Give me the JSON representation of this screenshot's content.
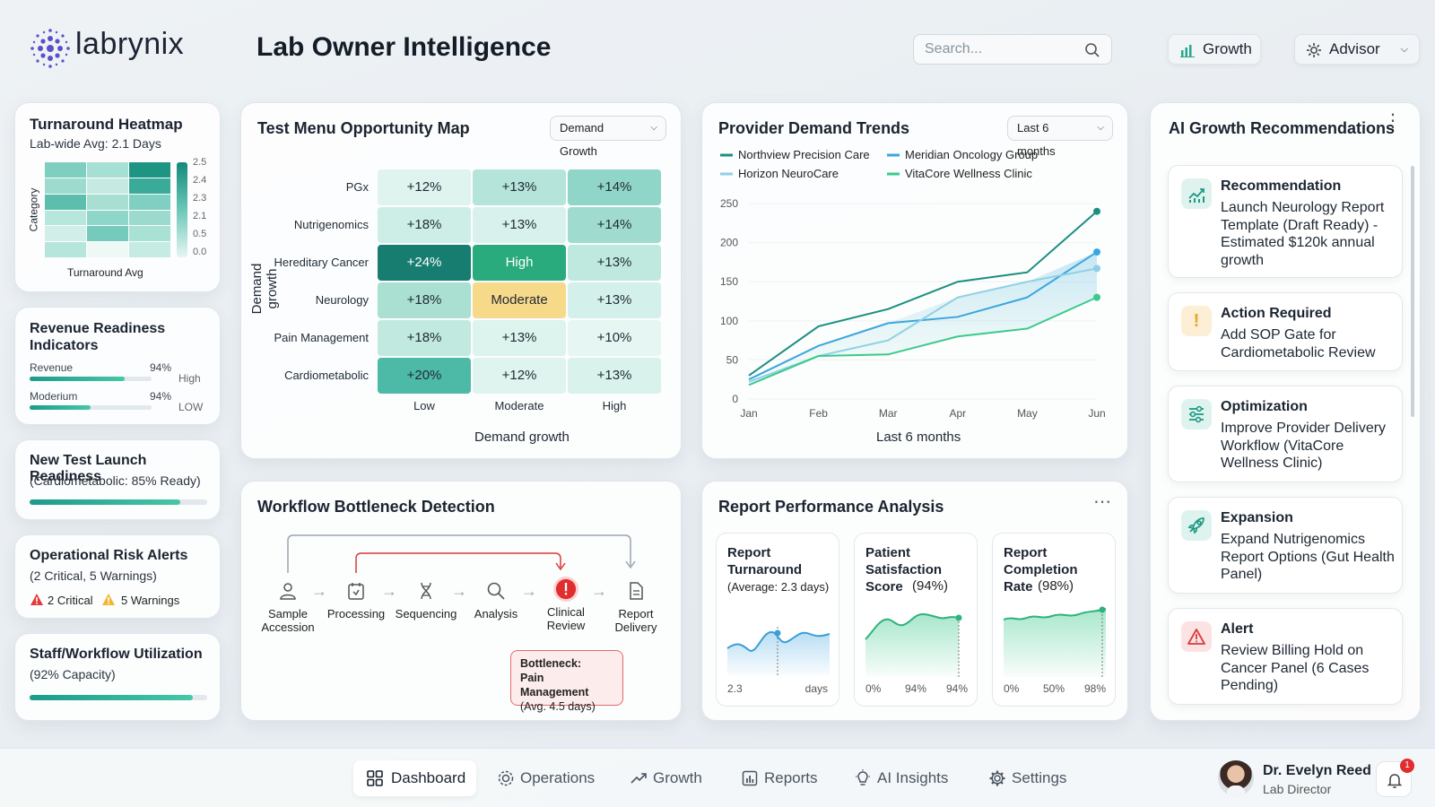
{
  "header": {
    "logo_text": "labrynix",
    "title": "Lab Owner Intelligence",
    "search_placeholder": "Search...",
    "growth_label": "Growth",
    "advisor_label": "Advisor"
  },
  "left": {
    "heatmap": {
      "title": "Turnaround Heatmap",
      "subtitle": "Lab-wide Avg: 2.1 Days",
      "ylabel": "Category",
      "xlabel": "Turnaround Avg",
      "scale": [
        "2.5",
        "2.4",
        "2.3",
        "2.1",
        "0.5",
        "0.0"
      ]
    },
    "revenue": {
      "title": "Revenue Readiness Indicators",
      "rows": [
        {
          "label": "Revenue",
          "value": "94%",
          "level": "High",
          "fill": 0.78
        },
        {
          "label": "Moderium",
          "value": "94%",
          "level": "LOW",
          "fill": 0.5
        }
      ]
    },
    "launch": {
      "title": "New Test Launch Readiness",
      "subtitle": "(Cardiometabolic: 85% Ready)",
      "fill": 0.85
    },
    "risk": {
      "title": "Operational Risk Alerts",
      "subtitle": "(2 Critical, 5 Warnings)",
      "critical": "2 Critical",
      "warnings": "5 Warnings"
    },
    "staff": {
      "title": "Staff/Workflow Utilization",
      "subtitle": "(92% Capacity)",
      "fill": 0.92
    }
  },
  "opportunity": {
    "title": "Test Menu Opportunity Map",
    "dropdown": "Demand Growth",
    "ylabel": "Demand growth",
    "xlabel": "Demand growth",
    "columns": [
      "Low",
      "Moderate",
      "High"
    ],
    "rows": [
      {
        "label": "PGx",
        "cells": [
          "+12%",
          "+13%",
          "+14%"
        ],
        "colors": [
          "#dff3ef",
          "#b4e4da",
          "#8fd5c8"
        ]
      },
      {
        "label": "Nutrigenomics",
        "cells": [
          "+18%",
          "+13%",
          "+14%"
        ],
        "colors": [
          "#cdeee6",
          "#d8f1ec",
          "#9fdccf"
        ]
      },
      {
        "label": "Hereditary Cancer",
        "cells": [
          "+24%",
          "High",
          "+13%"
        ],
        "colors": [
          "#177d70",
          "#2aab7e",
          "#bfe9df"
        ]
      },
      {
        "label": "Neurology",
        "cells": [
          "+18%",
          "Moderate",
          "+13%"
        ],
        "colors": [
          "#a9e0d2",
          "#f7d98a",
          "#d4f0ea"
        ]
      },
      {
        "label": "Pain Management",
        "cells": [
          "+18%",
          "+13%",
          "+10%"
        ],
        "colors": [
          "#c1e9df",
          "#dcf3ee",
          "#e6f6f3"
        ]
      },
      {
        "label": "Cardiometabolic",
        "cells": [
          "+20%",
          "+12%",
          "+13%"
        ],
        "colors": [
          "#4dbaa8",
          "#dff3ef",
          "#d9f2ec"
        ]
      }
    ]
  },
  "provider": {
    "title": "Provider Demand Trends",
    "dropdown": "Last 6 months",
    "xlabel": "Last 6 months",
    "chart_data": {
      "type": "line",
      "x": [
        "Jan",
        "Feb",
        "Mar",
        "Apr",
        "May",
        "Jun"
      ],
      "ylim": [
        0,
        250
      ],
      "yticks": [
        250,
        200,
        150,
        100,
        50,
        0
      ],
      "xlabel": "Last 6 months",
      "series": [
        {
          "name": "Northview Precision Care",
          "color": "#1a8f80",
          "values": [
            30,
            93,
            115,
            150,
            162,
            240
          ]
        },
        {
          "name": "Meridian Oncology Group",
          "color": "#3aa6df",
          "values": [
            25,
            68,
            97,
            105,
            130,
            188
          ]
        },
        {
          "name": "Horizon NeuroCare",
          "color": "#8fd0e6",
          "values": [
            22,
            55,
            75,
            130,
            150,
            167
          ]
        },
        {
          "name": "VitaCore Wellness Clinic",
          "color": "#3cc98c",
          "values": [
            18,
            55,
            57,
            80,
            90,
            130
          ]
        }
      ]
    }
  },
  "workflow": {
    "title": "Workflow Bottleneck Detection",
    "steps": [
      "Sample Accession",
      "Processing",
      "Sequencing",
      "Analysis",
      "Clinical Review",
      "Report Delivery"
    ],
    "bottleneck": [
      "Bottleneck:",
      "Pain Management",
      "(Avg. 4.5 days)"
    ]
  },
  "report": {
    "title": "Report Performance Analysis",
    "cards": [
      {
        "title": "Report Turnaround",
        "subtitle": "(Average: 2.3 days)",
        "axis": [
          "2.3",
          "days"
        ]
      },
      {
        "title": "Patient Satisfaction Score",
        "subtitle_value": "(94%)",
        "axis": [
          "0%",
          "94%",
          "94%"
        ]
      },
      {
        "title": "Report Completion Rate",
        "subtitle_value": "(98%)",
        "axis": [
          "0%",
          "50%",
          "98%"
        ]
      }
    ]
  },
  "recommendations": {
    "title": "AI Growth Recommendations",
    "items": [
      {
        "head": "Recommendation",
        "body": "Launch Neurology Report Template (Draft Ready) - Estimated $120k annual growth",
        "icon": "chart-up-icon"
      },
      {
        "head": "Action Required",
        "body": "Add SOP Gate for Cardiometabolic Review",
        "icon": "exclamation-icon"
      },
      {
        "head": "Optimization",
        "body": "Improve Provider Delivery Workflow (VitaCore Wellness Clinic)",
        "icon": "sliders-icon"
      },
      {
        "head": "Expansion",
        "body": "Expand Nutrigenomics Report Options (Gut Health Panel)",
        "icon": "rocket-icon"
      },
      {
        "head": "Alert",
        "body": "Review Billing Hold on Cancer Panel (6 Cases Pending)",
        "icon": "warning-icon"
      }
    ]
  },
  "nav": {
    "items": [
      "Dashboard",
      "Operations",
      "Growth",
      "Reports",
      "AI Insights",
      "Settings"
    ],
    "user_name": "Dr. Evelyn Reed",
    "user_role": "Lab Director",
    "notif_count": "1"
  }
}
